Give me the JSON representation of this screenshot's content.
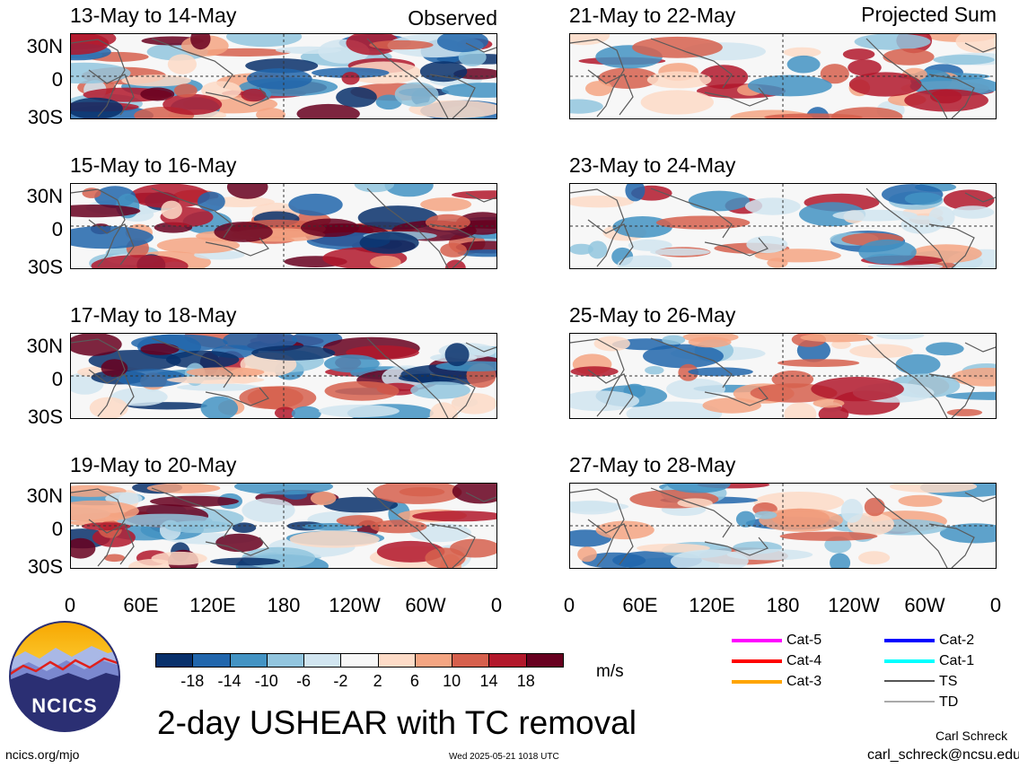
{
  "left_column": {
    "label": "Observed",
    "panels": [
      {
        "title": "13-May to 14-May"
      },
      {
        "title": "15-May to 16-May"
      },
      {
        "title": "17-May to 18-May"
      },
      {
        "title": "19-May to 20-May"
      }
    ]
  },
  "right_column": {
    "label": "Projected Sum",
    "panels": [
      {
        "title": "21-May to 22-May"
      },
      {
        "title": "23-May to 24-May"
      },
      {
        "title": "25-May to 26-May"
      },
      {
        "title": "27-May to 28-May"
      }
    ]
  },
  "lat_labels": [
    "30N",
    "0",
    "30S"
  ],
  "lon_labels": [
    "0",
    "60E",
    "120E",
    "180",
    "120W",
    "60W",
    "0"
  ],
  "colorbar": {
    "colors": [
      "#08306b",
      "#2166ac",
      "#4393c3",
      "#92c5de",
      "#d1e5f0",
      "#f7f7f7",
      "#fddbc7",
      "#f4a582",
      "#d6604d",
      "#b2182b",
      "#67001f"
    ],
    "ticks": [
      "-18",
      "-14",
      "-10",
      "-6",
      "-2",
      "2",
      "6",
      "10",
      "14",
      "18"
    ],
    "unit": "m/s"
  },
  "tc_legend": [
    {
      "label": "Cat-5",
      "color": "#ff00ff"
    },
    {
      "label": "Cat-4",
      "color": "#ff0000"
    },
    {
      "label": "Cat-3",
      "color": "#ffa500"
    },
    {
      "label": "Cat-2",
      "color": "#0000ff"
    },
    {
      "label": "Cat-1",
      "color": "#00ffff"
    },
    {
      "label": "TS",
      "color": "#555555"
    },
    {
      "label": "TD",
      "color": "#aaaaaa"
    }
  ],
  "logo_text": "NCICS",
  "main_title": "2-day USHEAR with TC removal",
  "url": "ncics.org/mjo",
  "timestamp": "Wed 2025-05-21 1018 UTC",
  "author": "Carl Schreck",
  "email": "carl_schreck@ncsu.edu"
}
